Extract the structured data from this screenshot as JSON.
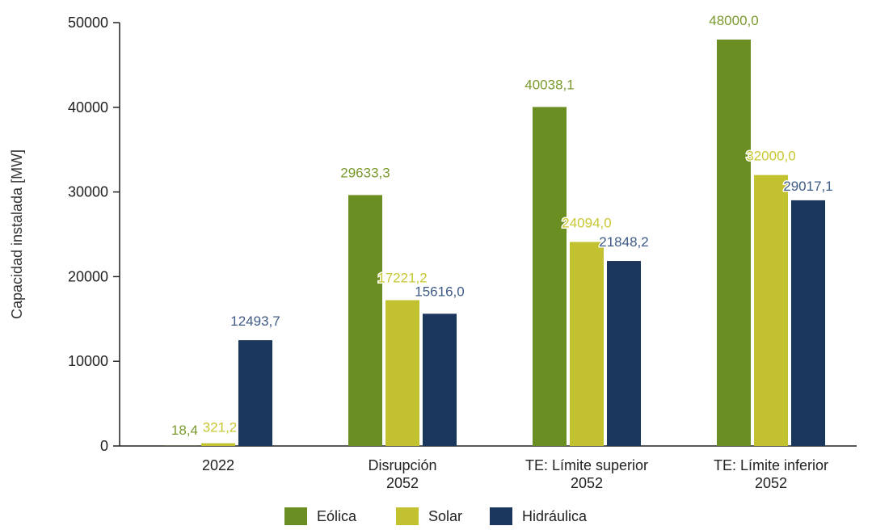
{
  "chart_data": {
    "type": "bar",
    "categories": [
      [
        "2022"
      ],
      [
        "Disrupción",
        "2052"
      ],
      [
        "TE: Límite superior",
        "2052"
      ],
      [
        "TE: Límite inferior",
        "2052"
      ]
    ],
    "series": [
      {
        "name": "Eólica",
        "color": "#6b8e23",
        "label_color": "#7a9a2e",
        "values": [
          18.4,
          29633.3,
          40038.1,
          48000.0
        ],
        "labels": [
          "18,4",
          "29633,3",
          "40038,1",
          "48000,0"
        ]
      },
      {
        "name": "Solar",
        "color": "#c2c230",
        "label_color": "#c8c832",
        "values": [
          321.2,
          17221.2,
          24094.0,
          32000.0
        ],
        "labels": [
          "321,2",
          "17221,2",
          "24094,0",
          "32000,0"
        ]
      },
      {
        "name": "Hidráulica",
        "color": "#1b365d",
        "label_color": "#3e5a86",
        "values": [
          12493.7,
          15616.0,
          21848.2,
          29017.1
        ],
        "labels": [
          "12493,7",
          "15616,0",
          "21848,2",
          "29017,1"
        ]
      }
    ],
    "ylabel": "Capacidad instalada [MW]",
    "xlabel": "",
    "ylim": [
      0,
      50000
    ],
    "yticks": [
      0,
      10000,
      20000,
      30000,
      40000,
      50000
    ],
    "ytick_labels": [
      "0",
      "10000",
      "20000",
      "30000",
      "40000",
      "50000"
    ],
    "grid": false,
    "legend_position": "bottom"
  }
}
